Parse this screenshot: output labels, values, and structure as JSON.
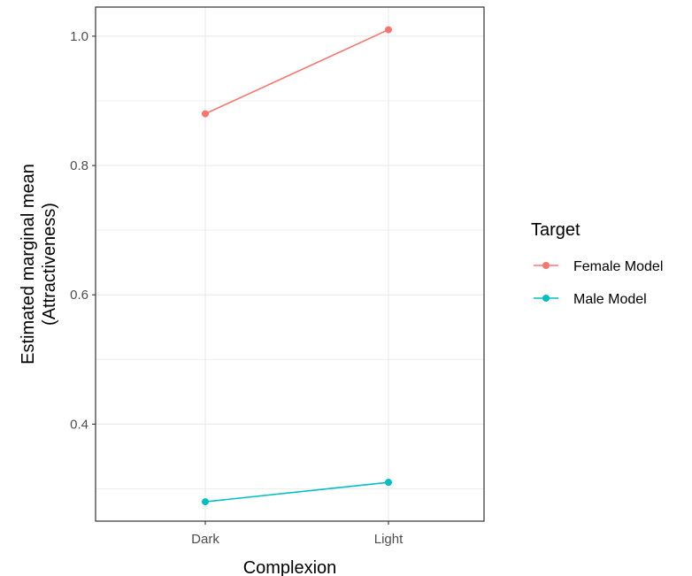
{
  "chart_data": {
    "type": "line",
    "categories": [
      "Dark",
      "Light"
    ],
    "series": [
      {
        "name": "Female Model",
        "values": [
          0.88,
          1.01
        ],
        "color": "#F8766D"
      },
      {
        "name": "Male Model",
        "values": [
          0.28,
          0.31
        ],
        "color": "#00BFC4"
      }
    ],
    "xlabel": "Complexion",
    "ylabel": [
      "Estimated marginal mean",
      "(Attractiveness)"
    ],
    "ylim": [
      0.25,
      1.045
    ],
    "yticks": [
      0.4,
      0.6,
      0.8,
      1.0
    ],
    "ytick_labels": [
      "0.4",
      "0.6",
      "0.8",
      "1.0"
    ],
    "grid": true,
    "legend": {
      "title": "Target",
      "position": "right"
    }
  }
}
